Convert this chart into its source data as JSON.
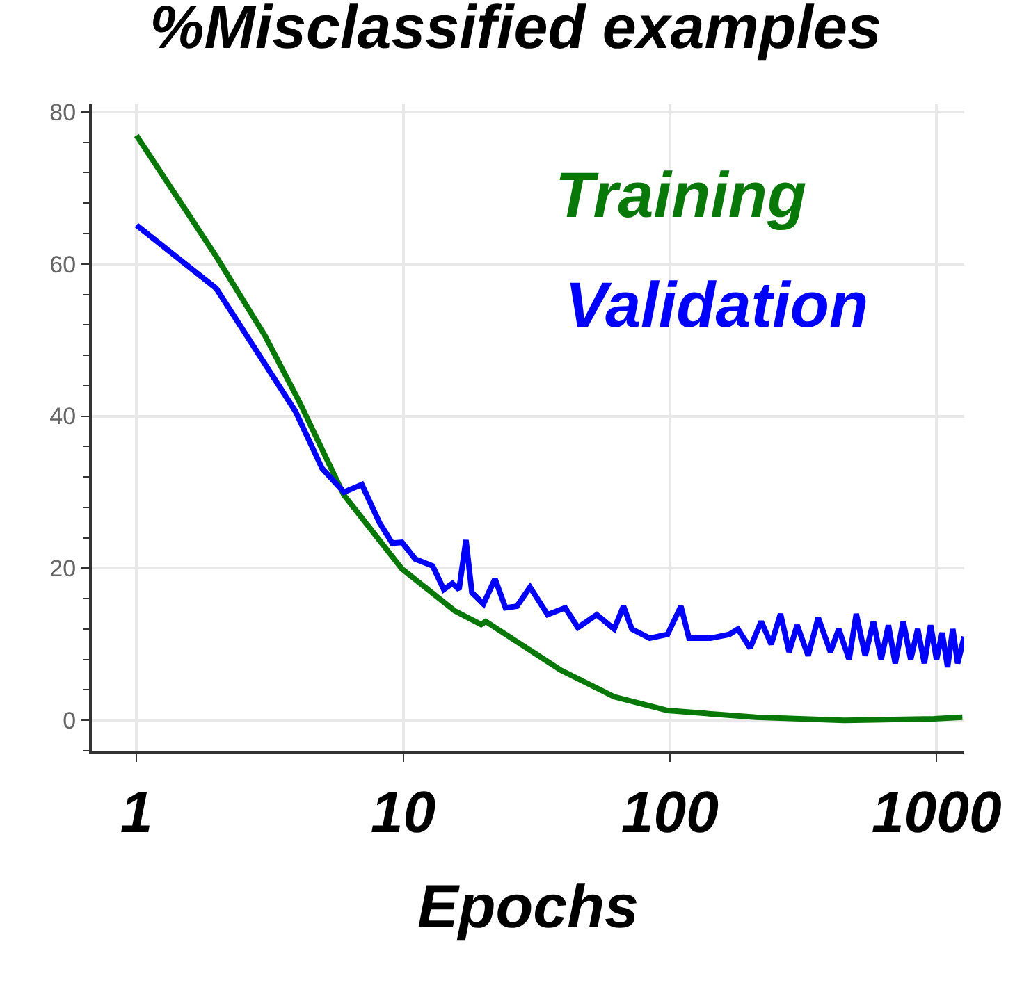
{
  "chart_data": {
    "type": "line",
    "title": "%Misclassified examples",
    "xlabel": "Epochs",
    "log": "x",
    "grid": true,
    "legend": false,
    "xlim": [
      0.68,
      1270
    ],
    "xticks": [
      1,
      10,
      100,
      1000
    ],
    "ylim": [
      -4,
      81
    ],
    "yticks": [
      0,
      20,
      40,
      60,
      80
    ],
    "series": [
      {
        "name": "Training",
        "color": "#087808",
        "x": [
          1,
          1.99,
          3.03,
          4.09,
          6,
          9.9,
          15.6,
          19.6,
          20.4,
          39,
          61.8,
          98,
          210,
          450,
          980,
          1250
        ],
        "values": [
          76.9,
          61,
          50.6,
          41.8,
          29.6,
          19.9,
          14.4,
          12.6,
          13,
          6.6,
          3.1,
          1.3,
          0.4,
          0,
          0.2,
          0.4
        ]
      },
      {
        "name": "Validation",
        "color": "#0000ff",
        "x": [
          1,
          1.99,
          3.95,
          4.97,
          6,
          7,
          8.15,
          9.1,
          9.9,
          11.1,
          12.9,
          14.2,
          15.3,
          16.2,
          17.2,
          18.1,
          20,
          22.1,
          24.2,
          26.7,
          29.9,
          34.8,
          40.5,
          45.2,
          53.2,
          61.8,
          67,
          72,
          84,
          98,
          110,
          118,
          142,
          167,
          180,
          200,
          220,
          240,
          260,
          280,
          300,
          330,
          360,
          400,
          430,
          470,
          500,
          540,
          580,
          620,
          660,
          700,
          750,
          800,
          850,
          900,
          950,
          1000,
          1050,
          1100,
          1150,
          1200,
          1270
        ],
        "values": [
          65.1,
          56.8,
          40.6,
          33.1,
          30,
          31,
          26,
          23.3,
          23.4,
          21.2,
          20.3,
          17.2,
          18,
          17.2,
          23.7,
          16.8,
          15.3,
          18.6,
          14.8,
          15,
          17.5,
          13.9,
          14.8,
          12.2,
          13.9,
          12,
          15,
          12,
          10.8,
          11.3,
          15,
          10.8,
          10.8,
          11.3,
          12,
          9.5,
          13,
          10,
          14,
          9,
          12.5,
          8.5,
          13.5,
          9,
          12,
          8,
          14,
          8.5,
          13,
          8,
          12.5,
          7.5,
          13,
          8,
          12,
          7.5,
          12.5,
          8,
          11.5,
          7,
          12,
          7.5,
          11
        ]
      }
    ]
  }
}
